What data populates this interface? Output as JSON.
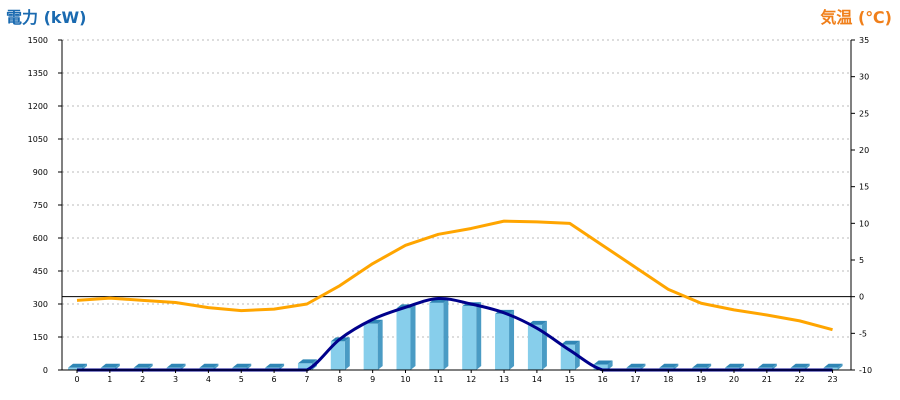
{
  "chart_data": {
    "type": "bar+line",
    "left_axis": {
      "title": "電力 (kW)",
      "title_color": "#1a6ab0",
      "ylim": [
        0,
        1500
      ],
      "ticks": [
        0,
        150,
        300,
        450,
        600,
        750,
        900,
        1050,
        1200,
        1350,
        1500
      ]
    },
    "right_axis": {
      "title": "気温 (℃)",
      "title_color": "#f07f1a",
      "ylim": [
        -10,
        35
      ],
      "ticks": [
        -10,
        -5,
        0,
        5,
        10,
        15,
        20,
        25,
        30,
        35
      ]
    },
    "categories": [
      "0",
      "1",
      "2",
      "3",
      "4",
      "5",
      "6",
      "7",
      "8",
      "9",
      "10",
      "11",
      "12",
      "13",
      "14",
      "15",
      "16",
      "17",
      "18",
      "19",
      "20",
      "21",
      "22",
      "23"
    ],
    "series": [
      {
        "type": "bar",
        "axis": "left",
        "color": "#87ceeb",
        "values": [
          10,
          10,
          10,
          10,
          10,
          10,
          10,
          30,
          130,
          210,
          280,
          305,
          290,
          255,
          205,
          115,
          25,
          10,
          10,
          10,
          10,
          10,
          10,
          10
        ]
      },
      {
        "type": "line",
        "axis": "left",
        "color": "#00008b",
        "values": [
          0,
          0,
          0,
          0,
          0,
          0,
          0,
          0,
          140,
          230,
          285,
          325,
          300,
          260,
          190,
          90,
          0,
          0,
          0,
          0,
          0,
          0,
          0,
          0
        ]
      },
      {
        "type": "line",
        "axis": "right",
        "color": "#ffa500",
        "values": [
          -0.5,
          -0.2,
          -0.5,
          -0.8,
          -1.5,
          -1.9,
          -1.7,
          -1.0,
          1.5,
          4.5,
          7.0,
          8.5,
          9.3,
          10.3,
          10.2,
          10.0,
          7.0,
          4.0,
          1.0,
          -0.9,
          -1.8,
          -2.5,
          -3.3,
          -4.5
        ]
      }
    ],
    "reference_line": {
      "axis": "right",
      "value": 0,
      "color": "#000000"
    },
    "grid": true
  }
}
